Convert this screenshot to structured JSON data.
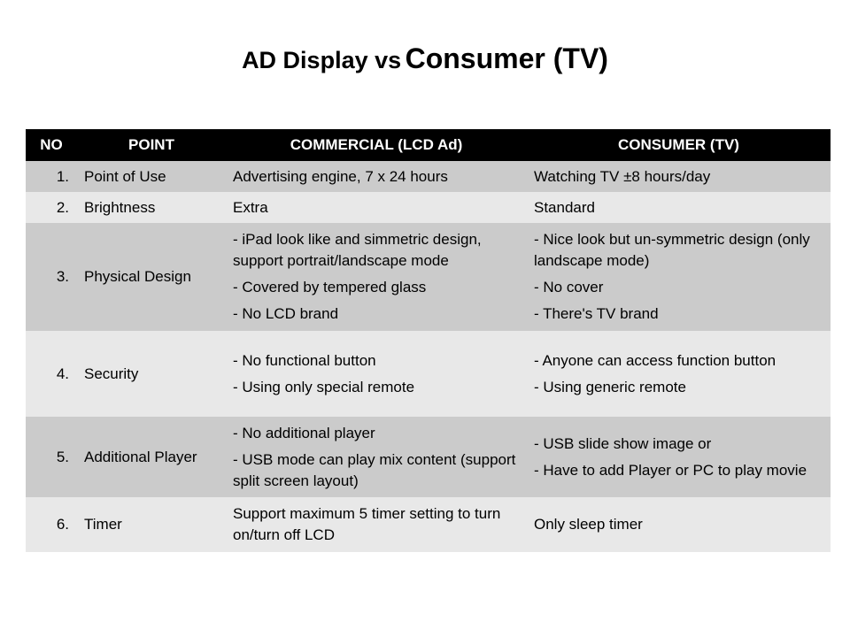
{
  "title": {
    "part1": "AD Display vs",
    "part2": "Consumer (TV)"
  },
  "table": {
    "headers": [
      "NO",
      "POINT",
      "COMMERCIAL (LCD Ad)",
      "CONSUMER (TV)"
    ],
    "rows": [
      {
        "no": "1.",
        "point": "Point of Use",
        "commercial": [
          "Advertising engine, 7 x 24 hours"
        ],
        "consumer": [
          "Watching TV ±8 hours/day"
        ]
      },
      {
        "no": "2.",
        "point": "Brightness",
        "commercial": [
          "Extra"
        ],
        "consumer": [
          "Standard"
        ]
      },
      {
        "no": "3.",
        "point": "Physical Design",
        "commercial": [
          "- iPad look like and simmetric design, support portrait/landscape mode",
          "- Covered by tempered glass",
          "- No LCD brand"
        ],
        "consumer": [
          "- Nice look but un-symmetric design (only landscape mode)",
          "- No cover",
          "- There's TV brand"
        ]
      },
      {
        "no": "4.",
        "point": "Security",
        "commercial": [
          "- No functional button",
          "- Using only special remote"
        ],
        "consumer": [
          "- Anyone can access function button",
          "- Using generic remote"
        ]
      },
      {
        "no": "5.",
        "point": "Additional Player",
        "commercial": [
          "- No additional player",
          "- USB mode can play mix content (support split screen layout)"
        ],
        "consumer": [
          "- USB slide show image or",
          "- Have to add Player or PC to play movie"
        ]
      },
      {
        "no": "6.",
        "point": "Timer",
        "commercial": [
          "Support maximum 5 timer setting to turn on/turn off LCD"
        ],
        "consumer": [
          "Only sleep timer"
        ]
      }
    ]
  }
}
